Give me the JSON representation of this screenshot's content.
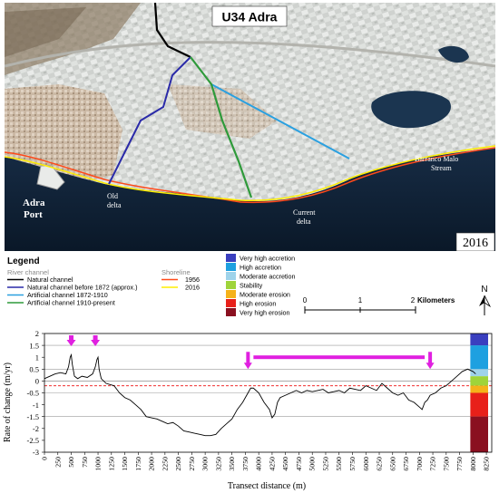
{
  "map": {
    "title": "U34 Adra",
    "year": "2016",
    "places": {
      "port": [
        "Adra",
        "Port"
      ],
      "old_delta": [
        "Old",
        "delta"
      ],
      "current_delta": [
        "Current",
        "delta"
      ],
      "barranco": [
        "Barranco Malo",
        "Stream"
      ]
    },
    "colors": {
      "natural_channel": "#000000",
      "channel_before_1872": "#2a2aa8",
      "channel_1872_1910": "#2aa0e0",
      "channel_1910_present": "#2e9a3a",
      "shoreline_1956": "#ff4a1a",
      "shoreline_2016": "#ffee00"
    }
  },
  "legend": {
    "title": "Legend",
    "river_heading": "River channel",
    "river_items": [
      {
        "label": "Natural channel",
        "color": "#000000"
      },
      {
        "label": "Natural channel before 1872 (approx.)",
        "color": "#2a2aa8"
      },
      {
        "label": "Artificial channel 1872-1910",
        "color": "#2aa0e0"
      },
      {
        "label": "Artificial channel 1910-present",
        "color": "#2e9a3a"
      }
    ],
    "shore_heading": "Shoreline",
    "shore_items": [
      {
        "label": "1956",
        "color": "#ff4a1a"
      },
      {
        "label": "2016",
        "color": "#ffee00"
      }
    ],
    "classes": [
      {
        "label": "Very high accretion",
        "color": "#3a3fbf"
      },
      {
        "label": "High accretion",
        "color": "#1ea0e0"
      },
      {
        "label": "Moderate accretion",
        "color": "#9fd3ea"
      },
      {
        "label": "Stability",
        "color": "#9fd43a"
      },
      {
        "label": "Moderate erosion",
        "color": "#f5b21a"
      },
      {
        "label": "High erosion",
        "color": "#e8201a"
      },
      {
        "label": "Very high erosion",
        "color": "#8a1020"
      }
    ],
    "scale": {
      "ticks": [
        "0",
        "1",
        "2"
      ],
      "unit": "Kilometers"
    },
    "north": "N"
  },
  "chart_data": {
    "type": "line",
    "xlabel": "Transect distance (m)",
    "ylabel": "Rate of change (m/yr)",
    "xlim": [
      0,
      8350
    ],
    "ylim": [
      -3,
      2
    ],
    "xticks": [
      0,
      250,
      500,
      750,
      1000,
      1250,
      1500,
      1750,
      2000,
      2250,
      2500,
      2750,
      3000,
      3250,
      3500,
      3750,
      4000,
      4250,
      4500,
      4750,
      5000,
      5250,
      5500,
      5750,
      6000,
      6250,
      6500,
      6750,
      7000,
      7250,
      7500,
      7750,
      8000,
      8250
    ],
    "yticks": [
      "2",
      "1.5",
      "1",
      "0.5",
      "0",
      "-0.5",
      "-1",
      "-1.5",
      "-2",
      "-2.5",
      "-3"
    ],
    "ytick_values": [
      2,
      1.5,
      1,
      0.5,
      0,
      -0.5,
      -1,
      -1.5,
      -2,
      -2.5,
      -3
    ],
    "grid_y": [
      1.5,
      0.5,
      -0.5,
      -1.5
    ],
    "threshold": -0.2,
    "x": [
      0,
      100,
      200,
      300,
      400,
      450,
      480,
      500,
      520,
      560,
      620,
      700,
      800,
      900,
      950,
      980,
      1000,
      1020,
      1060,
      1150,
      1300,
      1400,
      1500,
      1600,
      1700,
      1800,
      1900,
      2000,
      2100,
      2200,
      2300,
      2400,
      2500,
      2600,
      2700,
      2800,
      2900,
      3000,
      3100,
      3200,
      3300,
      3400,
      3500,
      3600,
      3700,
      3750,
      3800,
      3850,
      3900,
      4000,
      4100,
      4200,
      4250,
      4300,
      4350,
      4400,
      4500,
      4600,
      4700,
      4800,
      4900,
      5000,
      5100,
      5200,
      5300,
      5400,
      5500,
      5600,
      5700,
      5800,
      5900,
      6000,
      6100,
      6200,
      6300,
      6400,
      6500,
      6600,
      6700,
      6800,
      6900,
      7000,
      7050,
      7100,
      7150,
      7200,
      7300,
      7400,
      7500,
      7600,
      7700,
      7800,
      7900,
      8000,
      8050
    ],
    "y": [
      0.1,
      0.2,
      0.3,
      0.35,
      0.3,
      0.6,
      1.0,
      1.1,
      0.7,
      0.2,
      0.1,
      0.2,
      0.15,
      0.3,
      0.6,
      0.9,
      1.0,
      0.5,
      0.1,
      -0.1,
      -0.2,
      -0.5,
      -0.7,
      -0.8,
      -1.0,
      -1.2,
      -1.5,
      -1.55,
      -1.6,
      -1.7,
      -1.8,
      -1.75,
      -1.9,
      -2.1,
      -2.15,
      -2.2,
      -2.25,
      -2.3,
      -2.3,
      -2.25,
      -2.0,
      -1.8,
      -1.6,
      -1.2,
      -0.9,
      -0.7,
      -0.5,
      -0.3,
      -0.3,
      -0.5,
      -0.9,
      -1.2,
      -1.55,
      -1.4,
      -0.9,
      -0.7,
      -0.6,
      -0.5,
      -0.4,
      -0.5,
      -0.4,
      -0.45,
      -0.4,
      -0.35,
      -0.5,
      -0.45,
      -0.4,
      -0.5,
      -0.3,
      -0.35,
      -0.4,
      -0.2,
      -0.3,
      -0.4,
      -0.1,
      -0.3,
      -0.5,
      -0.6,
      -0.5,
      -0.8,
      -0.9,
      -1.1,
      -1.2,
      -0.9,
      -0.8,
      -0.6,
      -0.5,
      -0.3,
      -0.2,
      0.0,
      0.2,
      0.4,
      0.5,
      0.4,
      0.3
    ],
    "markers": [
      {
        "type": "arrow",
        "x": 500
      },
      {
        "type": "arrow",
        "x": 950
      },
      {
        "type": "bracket",
        "x_start": 3800,
        "x_end": 7200
      }
    ],
    "colorbar_colors": [
      "#3a3fbf",
      "#1ea0e0",
      "#9fd3ea",
      "#9fd43a",
      "#f5b21a",
      "#e8201a",
      "#8a1020"
    ],
    "colorbar_breaks": [
      2,
      1.5,
      0.5,
      0.2,
      -0.2,
      -0.5,
      -1.5,
      -3
    ]
  }
}
